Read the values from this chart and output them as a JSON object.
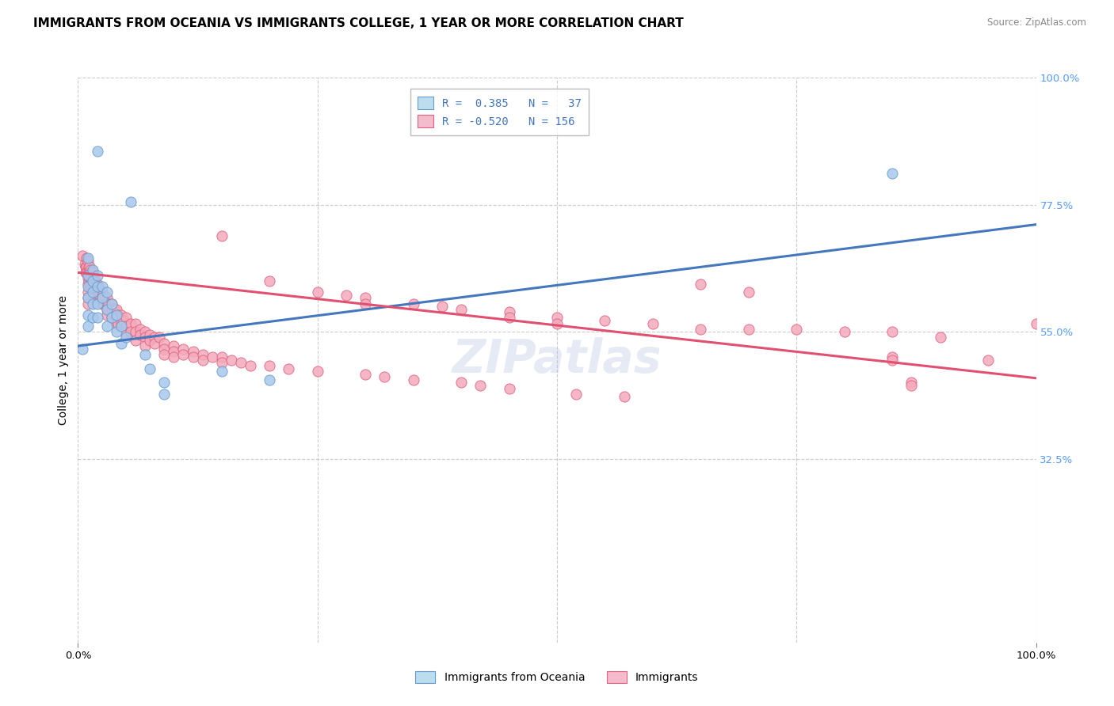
{
  "title": "IMMIGRANTS FROM OCEANIA VS IMMIGRANTS COLLEGE, 1 YEAR OR MORE CORRELATION CHART",
  "source": "Source: ZipAtlas.com",
  "ylabel": "College, 1 year or more",
  "xlim": [
    0.0,
    1.0
  ],
  "ylim": [
    0.0,
    1.0
  ],
  "ytick_positions": [
    1.0,
    0.775,
    0.55,
    0.325
  ],
  "ytick_labels": [
    "100.0%",
    "77.5%",
    "55.0%",
    "32.5%"
  ],
  "watermark": "ZIPatlas",
  "blue_color": "#A8C8EC",
  "pink_color": "#F4AABB",
  "blue_edge_color": "#6699CC",
  "pink_edge_color": "#E06080",
  "blue_line_color": "#4477BB",
  "pink_line_color": "#E05070",
  "legend_box_color1": "#BBDDEE",
  "legend_box_color2": "#F4BBCC",
  "blue_points": [
    [
      0.02,
      0.87
    ],
    [
      0.055,
      0.78
    ],
    [
      0.01,
      0.68
    ],
    [
      0.01,
      0.65
    ],
    [
      0.01,
      0.63
    ],
    [
      0.01,
      0.61
    ],
    [
      0.01,
      0.58
    ],
    [
      0.01,
      0.56
    ],
    [
      0.015,
      0.66
    ],
    [
      0.015,
      0.64
    ],
    [
      0.015,
      0.62
    ],
    [
      0.015,
      0.6
    ],
    [
      0.015,
      0.575
    ],
    [
      0.02,
      0.65
    ],
    [
      0.02,
      0.63
    ],
    [
      0.02,
      0.6
    ],
    [
      0.02,
      0.575
    ],
    [
      0.025,
      0.63
    ],
    [
      0.025,
      0.61
    ],
    [
      0.03,
      0.62
    ],
    [
      0.03,
      0.59
    ],
    [
      0.03,
      0.56
    ],
    [
      0.035,
      0.6
    ],
    [
      0.035,
      0.575
    ],
    [
      0.04,
      0.58
    ],
    [
      0.04,
      0.55
    ],
    [
      0.045,
      0.56
    ],
    [
      0.045,
      0.53
    ],
    [
      0.05,
      0.54
    ],
    [
      0.07,
      0.51
    ],
    [
      0.075,
      0.485
    ],
    [
      0.09,
      0.46
    ],
    [
      0.09,
      0.44
    ],
    [
      0.15,
      0.48
    ],
    [
      0.2,
      0.465
    ],
    [
      0.85,
      0.83
    ],
    [
      0.005,
      0.52
    ]
  ],
  "pink_points": [
    [
      0.005,
      0.685
    ],
    [
      0.007,
      0.67
    ],
    [
      0.008,
      0.665
    ],
    [
      0.008,
      0.655
    ],
    [
      0.009,
      0.68
    ],
    [
      0.009,
      0.665
    ],
    [
      0.009,
      0.655
    ],
    [
      0.01,
      0.675
    ],
    [
      0.01,
      0.66
    ],
    [
      0.01,
      0.645
    ],
    [
      0.01,
      0.635
    ],
    [
      0.01,
      0.62
    ],
    [
      0.01,
      0.61
    ],
    [
      0.01,
      0.6
    ],
    [
      0.011,
      0.665
    ],
    [
      0.011,
      0.655
    ],
    [
      0.011,
      0.64
    ],
    [
      0.012,
      0.665
    ],
    [
      0.012,
      0.655
    ],
    [
      0.012,
      0.645
    ],
    [
      0.012,
      0.63
    ],
    [
      0.013,
      0.66
    ],
    [
      0.013,
      0.645
    ],
    [
      0.013,
      0.635
    ],
    [
      0.014,
      0.655
    ],
    [
      0.014,
      0.645
    ],
    [
      0.014,
      0.63
    ],
    [
      0.015,
      0.655
    ],
    [
      0.015,
      0.645
    ],
    [
      0.015,
      0.635
    ],
    [
      0.015,
      0.625
    ],
    [
      0.016,
      0.65
    ],
    [
      0.016,
      0.635
    ],
    [
      0.016,
      0.625
    ],
    [
      0.017,
      0.645
    ],
    [
      0.017,
      0.635
    ],
    [
      0.018,
      0.64
    ],
    [
      0.018,
      0.63
    ],
    [
      0.018,
      0.62
    ],
    [
      0.019,
      0.635
    ],
    [
      0.019,
      0.625
    ],
    [
      0.02,
      0.635
    ],
    [
      0.02,
      0.625
    ],
    [
      0.02,
      0.615
    ],
    [
      0.021,
      0.63
    ],
    [
      0.021,
      0.62
    ],
    [
      0.022,
      0.625
    ],
    [
      0.022,
      0.615
    ],
    [
      0.023,
      0.625
    ],
    [
      0.023,
      0.615
    ],
    [
      0.025,
      0.62
    ],
    [
      0.025,
      0.61
    ],
    [
      0.025,
      0.6
    ],
    [
      0.027,
      0.61
    ],
    [
      0.027,
      0.6
    ],
    [
      0.03,
      0.61
    ],
    [
      0.03,
      0.6
    ],
    [
      0.03,
      0.59
    ],
    [
      0.03,
      0.58
    ],
    [
      0.032,
      0.6
    ],
    [
      0.032,
      0.59
    ],
    [
      0.035,
      0.6
    ],
    [
      0.035,
      0.59
    ],
    [
      0.035,
      0.575
    ],
    [
      0.038,
      0.59
    ],
    [
      0.038,
      0.58
    ],
    [
      0.04,
      0.59
    ],
    [
      0.04,
      0.575
    ],
    [
      0.04,
      0.565
    ],
    [
      0.042,
      0.58
    ],
    [
      0.042,
      0.565
    ],
    [
      0.045,
      0.58
    ],
    [
      0.045,
      0.565
    ],
    [
      0.048,
      0.57
    ],
    [
      0.05,
      0.575
    ],
    [
      0.05,
      0.56
    ],
    [
      0.05,
      0.545
    ],
    [
      0.055,
      0.565
    ],
    [
      0.055,
      0.55
    ],
    [
      0.06,
      0.565
    ],
    [
      0.06,
      0.55
    ],
    [
      0.06,
      0.535
    ],
    [
      0.065,
      0.555
    ],
    [
      0.065,
      0.545
    ],
    [
      0.07,
      0.55
    ],
    [
      0.07,
      0.54
    ],
    [
      0.07,
      0.525
    ],
    [
      0.075,
      0.545
    ],
    [
      0.075,
      0.535
    ],
    [
      0.08,
      0.54
    ],
    [
      0.08,
      0.53
    ],
    [
      0.085,
      0.54
    ],
    [
      0.09,
      0.53
    ],
    [
      0.09,
      0.52
    ],
    [
      0.09,
      0.51
    ],
    [
      0.1,
      0.525
    ],
    [
      0.1,
      0.515
    ],
    [
      0.1,
      0.505
    ],
    [
      0.11,
      0.52
    ],
    [
      0.11,
      0.51
    ],
    [
      0.12,
      0.515
    ],
    [
      0.12,
      0.505
    ],
    [
      0.13,
      0.51
    ],
    [
      0.13,
      0.5
    ],
    [
      0.14,
      0.505
    ],
    [
      0.15,
      0.72
    ],
    [
      0.15,
      0.505
    ],
    [
      0.15,
      0.495
    ],
    [
      0.16,
      0.5
    ],
    [
      0.17,
      0.495
    ],
    [
      0.18,
      0.49
    ],
    [
      0.2,
      0.64
    ],
    [
      0.2,
      0.49
    ],
    [
      0.22,
      0.485
    ],
    [
      0.25,
      0.62
    ],
    [
      0.25,
      0.48
    ],
    [
      0.28,
      0.615
    ],
    [
      0.3,
      0.61
    ],
    [
      0.3,
      0.6
    ],
    [
      0.3,
      0.475
    ],
    [
      0.32,
      0.47
    ],
    [
      0.35,
      0.6
    ],
    [
      0.35,
      0.465
    ],
    [
      0.38,
      0.595
    ],
    [
      0.4,
      0.59
    ],
    [
      0.4,
      0.46
    ],
    [
      0.42,
      0.455
    ],
    [
      0.45,
      0.585
    ],
    [
      0.45,
      0.575
    ],
    [
      0.45,
      0.45
    ],
    [
      0.5,
      0.575
    ],
    [
      0.5,
      0.565
    ],
    [
      0.52,
      0.44
    ],
    [
      0.55,
      0.57
    ],
    [
      0.57,
      0.435
    ],
    [
      0.6,
      0.565
    ],
    [
      0.65,
      0.635
    ],
    [
      0.65,
      0.555
    ],
    [
      0.7,
      0.62
    ],
    [
      0.7,
      0.555
    ],
    [
      0.75,
      0.555
    ],
    [
      0.8,
      0.55
    ],
    [
      0.85,
      0.55
    ],
    [
      0.85,
      0.505
    ],
    [
      0.85,
      0.5
    ],
    [
      0.87,
      0.46
    ],
    [
      0.87,
      0.455
    ],
    [
      0.9,
      0.54
    ],
    [
      0.95,
      0.5
    ],
    [
      1.0,
      0.565
    ]
  ],
  "blue_line": {
    "x0": 0.0,
    "y0": 0.525,
    "x1": 1.0,
    "y1": 0.74
  },
  "pink_line": {
    "x0": 0.0,
    "y0": 0.655,
    "x1": 1.0,
    "y1": 0.468
  },
  "title_fontsize": 11,
  "axis_label_fontsize": 10,
  "tick_fontsize": 9.5,
  "watermark_fontsize": 42,
  "background_color": "#ffffff",
  "grid_color": "#cccccc",
  "right_axis_color": "#5599FF"
}
